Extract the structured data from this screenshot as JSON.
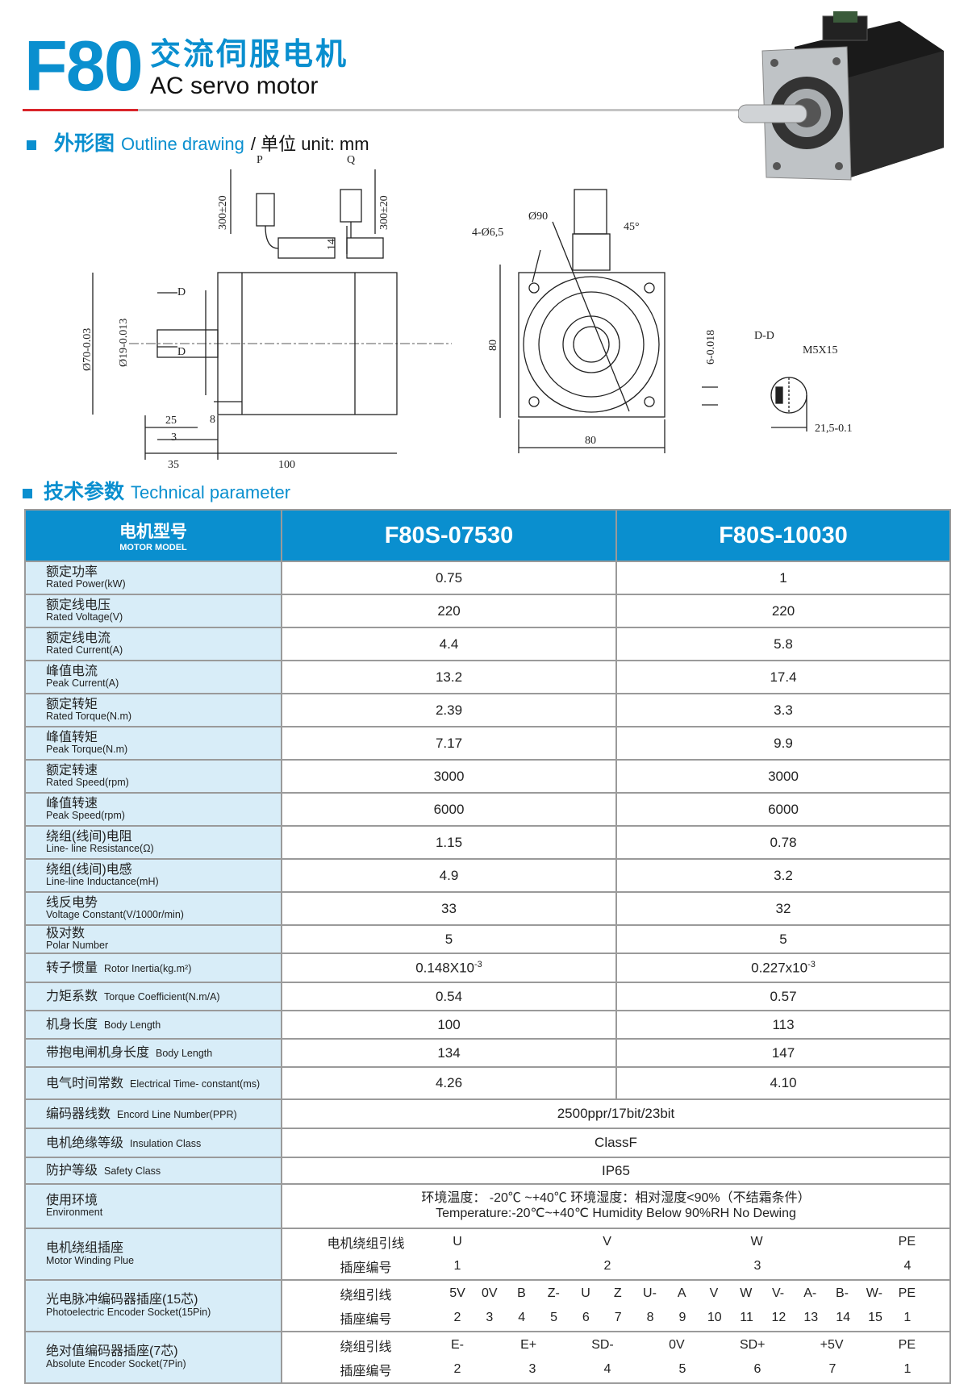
{
  "header": {
    "model_code": "F80",
    "title_zh": "交流伺服电机",
    "title_en": "AC servo motor",
    "accent": "#0a8fcf",
    "rule_color": "#d9252a"
  },
  "outline": {
    "zh": "外形图",
    "en": "Outline drawing",
    "unit": "/ 单位 unit: mm",
    "labels": {
      "p": "P",
      "q": "Q",
      "lead1": "300±20",
      "lead2": "300±20",
      "h14": "14",
      "d1": "D",
      "d2": "D",
      "d70": "Ø70-0.03",
      "d19": "Ø19-0.013",
      "l25": "25",
      "l8": "8",
      "l3": "3",
      "l35": "35",
      "l100": "100",
      "holes": "4-Ø6,5",
      "d90": "Ø90",
      "a45": "45°",
      "h80": "80",
      "w80": "80",
      "key": "6-0.018",
      "dd": "D-D",
      "m5": "M5X15",
      "l215": "21,5-0.1"
    }
  },
  "params": {
    "zh": "技术参数",
    "en": "Technical parameter"
  },
  "table": {
    "header": {
      "zh": "电机型号",
      "en": "MOTOR MODEL",
      "models": [
        "F80S-07530",
        "F80S-10030"
      ]
    },
    "rows": [
      {
        "zh": "额定功率",
        "en": "Rated Power(kW)",
        "v": [
          "0.75",
          "1"
        ]
      },
      {
        "zh": "额定线电压",
        "en": "Rated Voltage(V)",
        "v": [
          "220",
          "220"
        ]
      },
      {
        "zh": "额定线电流",
        "en": "Rated Current(A)",
        "v": [
          "4.4",
          "5.8"
        ]
      },
      {
        "zh": "峰值电流",
        "en": "Peak Current(A)",
        "v": [
          "13.2",
          "17.4"
        ]
      },
      {
        "zh": "额定转矩",
        "en": "Rated Torque(N.m)",
        "v": [
          "2.39",
          "3.3"
        ]
      },
      {
        "zh": "峰值转矩",
        "en": "Peak Torque(N.m)",
        "v": [
          "7.17",
          "9.9"
        ]
      },
      {
        "zh": "额定转速",
        "en": "Rated Speed(rpm)",
        "v": [
          "3000",
          "3000"
        ]
      },
      {
        "zh": "峰值转速",
        "en": "Peak Speed(rpm)",
        "v": [
          "6000",
          "6000"
        ]
      },
      {
        "zh": "绕组(线间)电阻",
        "en": "Line- line Resistance(Ω)",
        "v": [
          "1.15",
          "0.78"
        ]
      },
      {
        "zh": "绕组(线间)电感",
        "en": "Line-line Inductance(mH)",
        "v": [
          "4.9",
          "3.2"
        ]
      },
      {
        "zh": "线反电势",
        "en": "Voltage Constant(V/1000r/min)",
        "v": [
          "33",
          "32"
        ]
      },
      {
        "zh": "极对数",
        "en": "Polar Number",
        "v": [
          "5",
          "5"
        ]
      }
    ],
    "inertia": {
      "zh": "转子惯量",
      "en": "Rotor Inertia(kg.m²)",
      "v": [
        "0.148X10",
        "0.227x10"
      ],
      "exp": "-3"
    },
    "rows2": [
      {
        "zh": "力矩系数",
        "en": "Torque Coefficient(N.m/A)",
        "v": [
          "0.54",
          "0.57"
        ]
      },
      {
        "zh": "机身长度",
        "en": "Body Length",
        "v": [
          "100",
          "113"
        ]
      },
      {
        "zh": "带抱电闸机身长度",
        "en": "Body Length",
        "v": [
          "134",
          "147"
        ]
      },
      {
        "zh": "电气时间常数",
        "en": "Electrical Time- constant(ms)",
        "v": [
          "4.26",
          "4.10"
        ]
      }
    ],
    "merged": [
      {
        "zh": "编码器线数",
        "en": "Encord Line Number(PPR)",
        "v": "2500ppr/17bit/23bit"
      },
      {
        "zh": "电机绝缘等级",
        "en": "Insulation Class",
        "v": "ClassF"
      },
      {
        "zh": "防护等级",
        "en": "Safety Class",
        "v": "IP65"
      }
    ],
    "environment": {
      "zh": "使用环境",
      "en": "Environment",
      "line1": "环境温度： -20℃ ~+40℃   环境湿度：相对湿度<90%（不结霜条件）",
      "line2": "Temperature:-20℃~+40℃  Humidity Below 90%RH No Dewing"
    },
    "sockets": [
      {
        "zh": "电机绕组插座",
        "en": "Motor Winding Plue",
        "l1": "电机绕组引线",
        "l2": "插座编号",
        "a": [
          "U",
          "V",
          "W",
          "PE"
        ],
        "b": [
          "1",
          "2",
          "3",
          "4"
        ]
      },
      {
        "zh": "光电脉冲编码器插座(15芯)",
        "en": "Photoelectric Encoder Socket(15Pin)",
        "l1": "绕组引线",
        "l2": "插座编号",
        "a": [
          "5V",
          "0V",
          "B",
          "Z-",
          "U",
          "Z",
          "U-",
          "A",
          "V",
          "W",
          "V-",
          "A-",
          "B-",
          "W-",
          "PE"
        ],
        "b": [
          "2",
          "3",
          "4",
          "5",
          "6",
          "7",
          "8",
          "9",
          "10",
          "11",
          "12",
          "13",
          "14",
          "15",
          "1"
        ]
      },
      {
        "zh": "绝对值编码器插座(7芯)",
        "en": "Absolute Encoder Socket(7Pin)",
        "l1": "绕组引线",
        "l2": "插座编号",
        "a": [
          "E-",
          "E+",
          "SD-",
          "0V",
          "SD+",
          "+5V",
          "PE"
        ],
        "b": [
          "2",
          "3",
          "4",
          "5",
          "6",
          "7",
          "1"
        ]
      }
    ]
  }
}
